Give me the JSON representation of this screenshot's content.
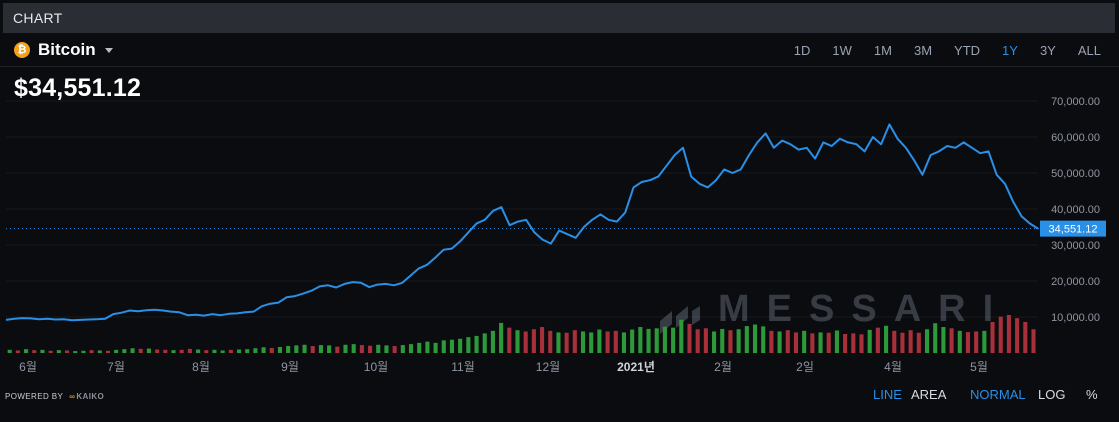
{
  "header": {
    "title": "CHART"
  },
  "asset": {
    "name": "Bitcoin",
    "symbol_glyph": "₿",
    "icon": "bitcoin-icon",
    "price": "$34,551.12"
  },
  "ranges": [
    {
      "label": "1D",
      "active": false
    },
    {
      "label": "1W",
      "active": false
    },
    {
      "label": "1M",
      "active": false
    },
    {
      "label": "3M",
      "active": false
    },
    {
      "label": "YTD",
      "active": false
    },
    {
      "label": "1Y",
      "active": true
    },
    {
      "label": "3Y",
      "active": false
    },
    {
      "label": "ALL",
      "active": false
    }
  ],
  "footer": {
    "powered_by": "POWERED BY",
    "provider": "KAIKO",
    "chart_types": [
      {
        "label": "LINE",
        "active": true
      },
      {
        "label": "AREA",
        "active": false
      }
    ],
    "scales": [
      {
        "label": "NORMAL",
        "active": true
      },
      {
        "label": "LOG",
        "active": false
      },
      {
        "label": "%",
        "active": false
      }
    ]
  },
  "watermark": "MESSARI",
  "colors": {
    "line": "#2a8fe6",
    "accent": "#2a8fe6",
    "volume_up": "#2d9a3a",
    "volume_down": "#a8303a",
    "background": "#0b0c0f",
    "header_bg": "#2a2d33"
  },
  "chart_data": {
    "type": "line",
    "title": "",
    "xlabel": "",
    "ylabel": "",
    "x_tick_labels": [
      "6월",
      "7월",
      "8월",
      "9월",
      "10월",
      "11월",
      "12월",
      "2021년",
      "2월",
      "2일",
      "4월",
      "5월"
    ],
    "y_tick_labels": [
      "10,000.00",
      "20,000.00",
      "30,000.00",
      "40,000.00",
      "50,000.00",
      "60,000.00",
      "70,000.00"
    ],
    "ylim": [
      0,
      75000
    ],
    "current_value": 34551.12,
    "current_label": "34,551.12",
    "series": [
      {
        "values": [
          9200,
          9500,
          9700,
          9600,
          9400,
          9500,
          9300,
          9400,
          9100,
          9200,
          9300,
          9400,
          9500,
          10800,
          11200,
          11800,
          11600,
          11900,
          12000,
          11800,
          11500,
          11300,
          10500,
          10600,
          10400,
          10800,
          10500,
          10900,
          11000,
          11300,
          11500,
          13000,
          13700,
          14000,
          15500,
          15800,
          16500,
          17300,
          18500,
          18800,
          18200,
          19200,
          19700,
          19500,
          18300,
          19000,
          19200,
          18800,
          19500,
          21500,
          23500,
          24500,
          26500,
          28700,
          29000,
          31000,
          33500,
          36000,
          37000,
          39500,
          40500,
          35500,
          36500,
          37000,
          33500,
          31500,
          30400,
          34000,
          33000,
          32000,
          35000,
          37000,
          38500,
          37000,
          36500,
          39000,
          46000,
          47500,
          48000,
          49000,
          52000,
          55000,
          57000,
          49000,
          47000,
          46000,
          48000,
          51000,
          50000,
          51000,
          55000,
          58500,
          61000,
          57000,
          59000,
          58000,
          56500,
          57000,
          54000,
          58500,
          57500,
          59500,
          58500,
          58000,
          56000,
          60000,
          58000,
          63500,
          59500,
          57000,
          53500,
          49500,
          55000,
          56000,
          57500,
          57000,
          58500,
          57000,
          55500,
          56000,
          49500,
          47000,
          42000,
          38000,
          36000,
          34551.12
        ]
      }
    ],
    "volume": {
      "values": [
        1,
        0.8,
        1.2,
        0.9,
        1,
        0.7,
        0.9,
        0.8,
        0.6,
        0.7,
        0.9,
        0.8,
        0.7,
        1,
        1.2,
        1.5,
        1.3,
        1.4,
        1.1,
        1,
        0.9,
        1,
        1.3,
        1.1,
        0.9,
        1,
        0.8,
        1,
        1.1,
        1.2,
        1.5,
        1.8,
        1.6,
        1.9,
        2.2,
        2.4,
        2.6,
        2.2,
        2.5,
        2.4,
        2,
        2.6,
        2.8,
        2.5,
        2.3,
        2.6,
        2.4,
        2.2,
        2.5,
        2.8,
        3.2,
        3.6,
        3.2,
        4,
        4.2,
        4.5,
        5,
        5.4,
        6.2,
        7,
        9.5,
        8,
        7.2,
        6.8,
        7.5,
        8.2,
        7,
        6.5,
        6.4,
        7.2,
        6.8,
        6.5,
        7.4,
        6.8,
        7,
        6.5,
        7.4,
        8.2,
        7.6,
        7.8,
        8.3,
        8,
        10.5,
        9.2,
        7.5,
        7.8,
        6.8,
        7.6,
        7.2,
        7.5,
        8.5,
        9,
        8.4,
        7,
        6.8,
        7.2,
        6.5,
        7,
        6.2,
        6.5,
        6.4,
        7.1,
        6,
        6.2,
        5.9,
        7.3,
        8,
        8.6,
        7,
        6.4,
        7.2,
        6.4,
        7.5,
        9.4,
        8.2,
        7.8,
        7,
        6.6,
        6.8,
        7,
        9.8,
        11.5,
        12,
        11,
        9.8,
        7.5
      ],
      "up": [
        1,
        0,
        1,
        0,
        1,
        0,
        1,
        0,
        1,
        1,
        0,
        1,
        0,
        1,
        1,
        1,
        0,
        1,
        0,
        0,
        1,
        0,
        0,
        1,
        0,
        1,
        1,
        0,
        1,
        1,
        1,
        1,
        0,
        1,
        1,
        1,
        1,
        0,
        1,
        1,
        0,
        1,
        1,
        0,
        0,
        1,
        1,
        0,
        1,
        1,
        1,
        1,
        1,
        1,
        1,
        1,
        1,
        1,
        1,
        1,
        1,
        0,
        1,
        0,
        0,
        0,
        0,
        1,
        0,
        0,
        1,
        1,
        1,
        0,
        0,
        1,
        1,
        1,
        1,
        1,
        1,
        1,
        1,
        0,
        0,
        0,
        1,
        1,
        0,
        1,
        1,
        1,
        1,
        0,
        1,
        0,
        0,
        1,
        0,
        1,
        0,
        1,
        0,
        0,
        0,
        1,
        0,
        1,
        0,
        0,
        0,
        0,
        1,
        1,
        1,
        0,
        1,
        0,
        0,
        1,
        0,
        0,
        0,
        0,
        0,
        0
      ]
    }
  }
}
